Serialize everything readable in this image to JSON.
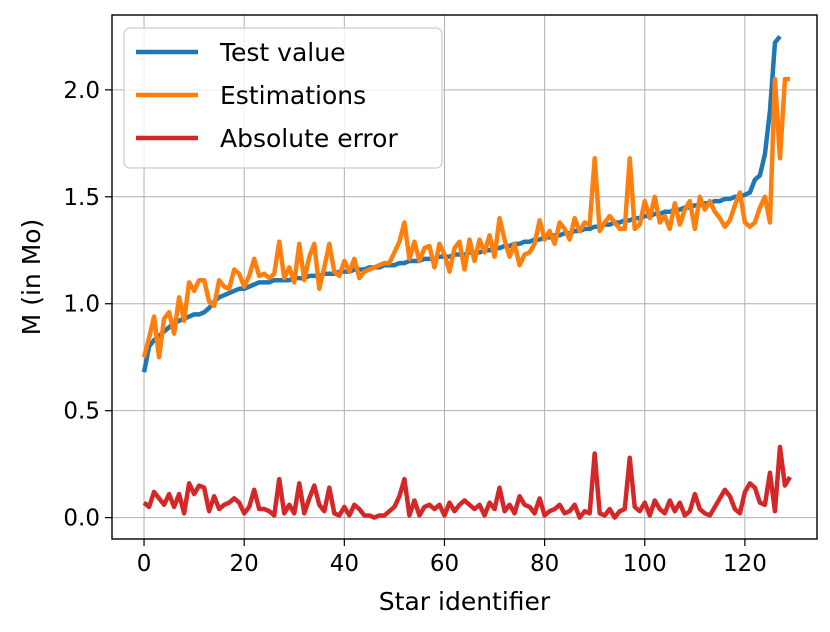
{
  "chart_data": {
    "type": "line",
    "xlabel": "Star identifier",
    "ylabel": "M (in Mo)",
    "xlim": [
      -6.4,
      134.4
    ],
    "ylim": [
      -0.1,
      2.35
    ],
    "xticks": [
      0,
      20,
      40,
      60,
      80,
      100,
      120
    ],
    "yticks": [
      0.0,
      0.5,
      1.0,
      1.5,
      2.0
    ],
    "xtick_labels": [
      "0",
      "20",
      "40",
      "60",
      "80",
      "100",
      "120"
    ],
    "ytick_labels": [
      "0.0",
      "0.5",
      "1.0",
      "1.5",
      "2.0"
    ],
    "grid": true,
    "legend_position": "upper-left",
    "series": [
      {
        "name": "Test value",
        "color": "#1f77b4",
        "values": [
          0.68,
          0.8,
          0.83,
          0.85,
          0.87,
          0.89,
          0.91,
          0.92,
          0.93,
          0.94,
          0.95,
          0.95,
          0.96,
          0.98,
          1.01,
          1.03,
          1.04,
          1.05,
          1.06,
          1.07,
          1.07,
          1.08,
          1.09,
          1.1,
          1.1,
          1.1,
          1.11,
          1.11,
          1.11,
          1.11,
          1.12,
          1.12,
          1.12,
          1.13,
          1.13,
          1.13,
          1.14,
          1.14,
          1.14,
          1.15,
          1.15,
          1.15,
          1.16,
          1.16,
          1.16,
          1.17,
          1.17,
          1.17,
          1.18,
          1.18,
          1.18,
          1.19,
          1.19,
          1.2,
          1.2,
          1.2,
          1.21,
          1.21,
          1.21,
          1.22,
          1.22,
          1.22,
          1.23,
          1.23,
          1.23,
          1.24,
          1.24,
          1.24,
          1.25,
          1.25,
          1.26,
          1.26,
          1.27,
          1.27,
          1.28,
          1.28,
          1.29,
          1.29,
          1.3,
          1.3,
          1.31,
          1.31,
          1.32,
          1.32,
          1.33,
          1.33,
          1.34,
          1.34,
          1.35,
          1.35,
          1.36,
          1.36,
          1.37,
          1.37,
          1.38,
          1.38,
          1.39,
          1.39,
          1.4,
          1.4,
          1.41,
          1.41,
          1.42,
          1.42,
          1.43,
          1.43,
          1.44,
          1.44,
          1.45,
          1.45,
          1.46,
          1.46,
          1.47,
          1.47,
          1.48,
          1.48,
          1.49,
          1.49,
          1.5,
          1.5,
          1.51,
          1.52,
          1.58,
          1.6,
          1.7,
          1.9,
          2.22,
          2.25
        ]
      },
      {
        "name": "Estimations",
        "color": "#ff7f0e",
        "values": [
          0.75,
          0.84,
          0.94,
          0.75,
          0.93,
          0.96,
          0.86,
          1.03,
          0.92,
          1.1,
          1.06,
          1.11,
          1.11,
          1.01,
          0.99,
          1.11,
          1.08,
          1.07,
          1.16,
          1.14,
          1.08,
          1.13,
          1.21,
          1.13,
          1.14,
          1.12,
          1.14,
          1.29,
          1.12,
          1.17,
          1.1,
          1.28,
          1.11,
          1.22,
          1.28,
          1.07,
          1.17,
          1.28,
          1.15,
          1.13,
          1.2,
          1.15,
          1.21,
          1.12,
          1.15,
          1.16,
          1.17,
          1.18,
          1.19,
          1.19,
          1.24,
          1.29,
          1.38,
          1.21,
          1.29,
          1.2,
          1.26,
          1.27,
          1.17,
          1.28,
          1.23,
          1.15,
          1.26,
          1.29,
          1.16,
          1.3,
          1.2,
          1.3,
          1.24,
          1.32,
          1.22,
          1.4,
          1.3,
          1.22,
          1.28,
          1.18,
          1.23,
          1.24,
          1.28,
          1.39,
          1.3,
          1.34,
          1.28,
          1.38,
          1.35,
          1.3,
          1.4,
          1.34,
          1.38,
          1.37,
          1.68,
          1.34,
          1.38,
          1.41,
          1.38,
          1.35,
          1.35,
          1.68,
          1.35,
          1.37,
          1.48,
          1.4,
          1.5,
          1.38,
          1.41,
          1.35,
          1.47,
          1.37,
          1.44,
          1.48,
          1.35,
          1.5,
          1.44,
          1.48,
          1.43,
          1.4,
          1.36,
          1.39,
          1.46,
          1.52,
          1.38,
          1.36,
          1.38,
          1.45,
          1.5,
          1.38,
          2.05,
          1.68,
          2.05,
          2.05
        ]
      },
      {
        "name": "Absolute error",
        "color": "#d62728",
        "values": [
          0.07,
          0.05,
          0.12,
          0.09,
          0.06,
          0.11,
          0.05,
          0.11,
          0.02,
          0.16,
          0.11,
          0.15,
          0.14,
          0.03,
          0.1,
          0.04,
          0.06,
          0.07,
          0.09,
          0.07,
          0.02,
          0.05,
          0.13,
          0.04,
          0.04,
          0.03,
          0.01,
          0.18,
          0.02,
          0.06,
          0.02,
          0.16,
          0.02,
          0.09,
          0.15,
          0.06,
          0.03,
          0.14,
          0.02,
          0.01,
          0.05,
          0.01,
          0.06,
          0.04,
          0.01,
          0.01,
          0.0,
          0.01,
          0.01,
          0.03,
          0.05,
          0.1,
          0.18,
          0.01,
          0.08,
          0.01,
          0.05,
          0.06,
          0.04,
          0.06,
          0.01,
          0.07,
          0.03,
          0.06,
          0.08,
          0.06,
          0.04,
          0.06,
          0.01,
          0.07,
          0.04,
          0.14,
          0.03,
          0.06,
          0.02,
          0.1,
          0.06,
          0.05,
          0.02,
          0.09,
          0.01,
          0.03,
          0.04,
          0.06,
          0.02,
          0.03,
          0.06,
          0.0,
          0.03,
          0.02,
          0.3,
          0.02,
          0.01,
          0.04,
          0.0,
          0.03,
          0.04,
          0.28,
          0.05,
          0.03,
          0.07,
          0.01,
          0.08,
          0.04,
          0.02,
          0.08,
          0.03,
          0.07,
          0.01,
          0.03,
          0.11,
          0.04,
          0.02,
          0.01,
          0.05,
          0.09,
          0.13,
          0.1,
          0.04,
          0.02,
          0.12,
          0.16,
          0.14,
          0.07,
          0.06,
          0.21,
          0.03,
          0.33,
          0.15,
          0.19
        ]
      }
    ]
  }
}
